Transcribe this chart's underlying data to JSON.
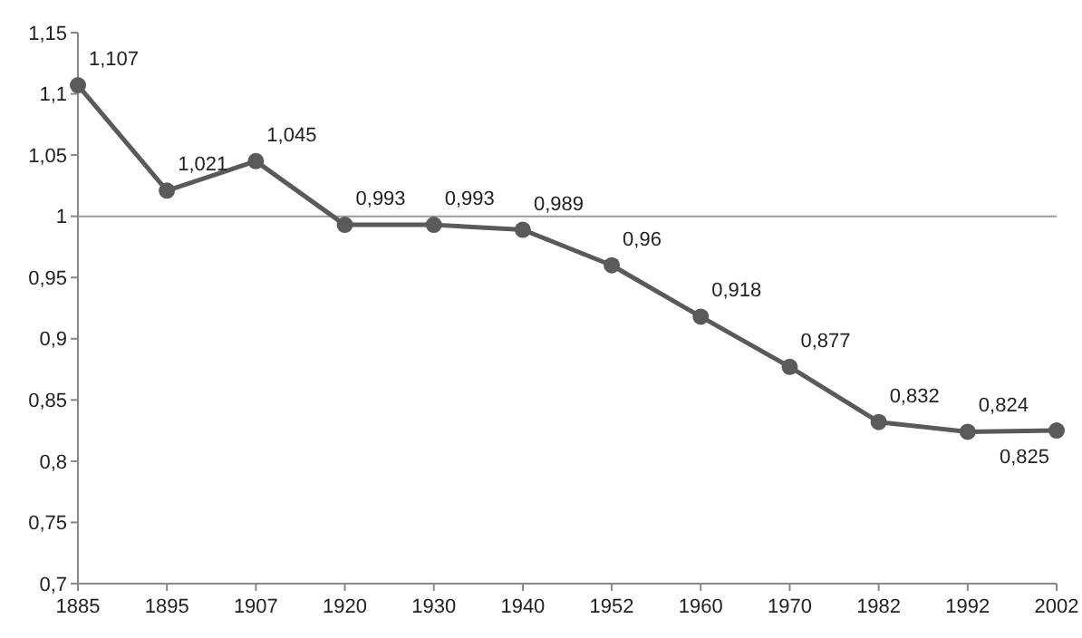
{
  "chart_data": {
    "type": "line",
    "categories": [
      "1885",
      "1895",
      "1907",
      "1920",
      "1930",
      "1940",
      "1952",
      "1960",
      "1970",
      "1982",
      "1992",
      "2002"
    ],
    "series": [
      {
        "color": "#5a5a5a",
        "values": [
          1.107,
          1.021,
          1.045,
          0.993,
          0.993,
          0.989,
          0.96,
          0.918,
          0.877,
          0.832,
          0.824,
          0.825
        ],
        "value_labels": [
          "1,107",
          "1,021",
          "1,045",
          "0,993",
          "0,993",
          "0,989",
          "0,96",
          "0,918",
          "0,877",
          "0,832",
          "0,824",
          "0,825"
        ]
      }
    ],
    "ylim": [
      0.7,
      1.15
    ],
    "yticks": [
      {
        "value": 0.7,
        "label": "0,7"
      },
      {
        "value": 0.75,
        "label": "0,75"
      },
      {
        "value": 0.8,
        "label": "0,8"
      },
      {
        "value": 0.85,
        "label": "0,85"
      },
      {
        "value": 0.9,
        "label": "0,9"
      },
      {
        "value": 0.95,
        "label": "0,95"
      },
      {
        "value": 1,
        "label": "1"
      },
      {
        "value": 1.05,
        "label": "1,05"
      },
      {
        "value": 1.1,
        "label": "1,1"
      },
      {
        "value": 1.15,
        "label": "1,15"
      }
    ],
    "ref_lines": [
      {
        "axis": "y",
        "value": 1,
        "color": "#9a9a9a"
      }
    ],
    "marker": "circle",
    "line_style": "solid"
  }
}
